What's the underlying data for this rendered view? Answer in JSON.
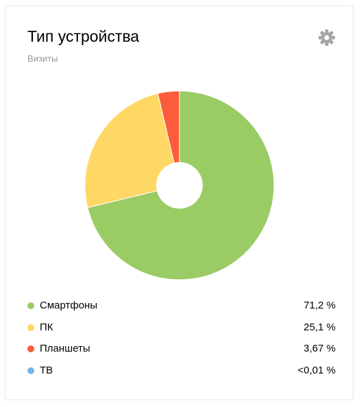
{
  "widget": {
    "title": "Тип устройства",
    "subtitle": "Визиты",
    "settings_icon": "gear-icon"
  },
  "chart_data": {
    "type": "pie",
    "donut": true,
    "categories": [
      "Смартфоны",
      "ПК",
      "Планшеты",
      "ТВ"
    ],
    "values": [
      71.2,
      25.1,
      3.67,
      0.01
    ],
    "colors": [
      "#9bcb64",
      "#ffd764",
      "#fc5c3c",
      "#74b5e8"
    ]
  },
  "legend": [
    {
      "label": "Смартфоны",
      "value": "71,2 %",
      "color": "#9bcb64"
    },
    {
      "label": "ПК",
      "value": "25,1 %",
      "color": "#ffd764"
    },
    {
      "label": "Планшеты",
      "value": "3,67 %",
      "color": "#fc5c3c"
    },
    {
      "label": "ТВ",
      "value": "<0,01 %",
      "color": "#74b5e8"
    }
  ]
}
